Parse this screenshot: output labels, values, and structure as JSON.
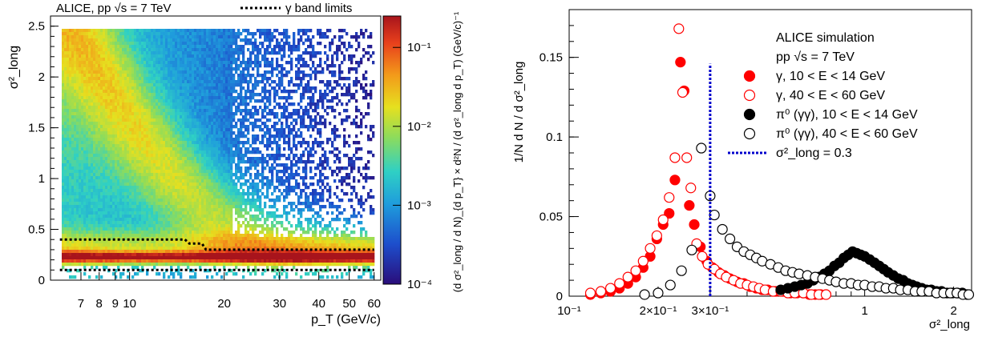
{
  "chart_data": [
    {
      "type": "heatmap",
      "title": "ALICE, pp √s = 7 TeV",
      "legend": {
        "position": "top-right",
        "items": [
          {
            "label": "γ band limits",
            "style": "dotted",
            "color": "#000000"
          }
        ]
      },
      "xlabel": "p_T (GeV/c)",
      "ylabel": "σ²_long",
      "x_scale": "log",
      "xlim": [
        5.6,
        63
      ],
      "ylim": [
        0,
        2.6
      ],
      "x_ticks": [
        {
          "v": 7,
          "t": "7"
        },
        {
          "v": 8,
          "t": "8"
        },
        {
          "v": 9,
          "t": "9"
        },
        {
          "v": 10,
          "t": "10"
        },
        {
          "v": 20,
          "t": "20"
        },
        {
          "v": 30,
          "t": "30"
        },
        {
          "v": 40,
          "t": "40"
        },
        {
          "v": 50,
          "t": "50"
        },
        {
          "v": 60,
          "t": "60"
        }
      ],
      "y_ticks": [
        {
          "v": 0,
          "t": "0"
        },
        {
          "v": 0.5,
          "t": "0.5"
        },
        {
          "v": 1,
          "t": "1"
        },
        {
          "v": 1.5,
          "t": "1.5"
        },
        {
          "v": 2,
          "t": "2"
        },
        {
          "v": 2.5,
          "t": "2.5"
        }
      ],
      "colorbar": {
        "scale": "log",
        "range": [
          0.0001,
          0.25
        ],
        "ticks": [
          {
            "v": 0.1,
            "t": "10⁻¹"
          },
          {
            "v": 0.01,
            "t": "10⁻²"
          },
          {
            "v": 0.001,
            "t": "10⁻³"
          },
          {
            "v": 0.0001,
            "t": "10⁻⁴"
          }
        ],
        "label": "(d σ²_long / d N)_{d p_T} × d²N / (d σ²_long d p_T) (GeV/c)⁻¹"
      },
      "band_limits": {
        "upper": [
          [
            6.0,
            0.4
          ],
          [
            15.0,
            0.4
          ],
          [
            15.5,
            0.36
          ],
          [
            17.0,
            0.36
          ],
          [
            17.5,
            0.3
          ],
          [
            60.0,
            0.3
          ]
        ],
        "lower": [
          [
            6.0,
            0.1
          ],
          [
            60.0,
            0.1
          ]
        ]
      }
    },
    {
      "type": "scatter",
      "x_scale": "log",
      "xlabel": "σ²_long",
      "ylabel": "1/N  d N / d σ²_long",
      "xlim": [
        0.1,
        2.3
      ],
      "ylim": [
        0,
        0.18
      ],
      "x_ticks": [
        {
          "v": 0.1,
          "t": "10⁻¹"
        },
        {
          "v": 0.2,
          "t": "2×10⁻¹"
        },
        {
          "v": 0.3,
          "t": "3×10⁻¹"
        },
        {
          "v": 1,
          "t": "1"
        },
        {
          "v": 2,
          "t": "2"
        }
      ],
      "y_ticks": [
        {
          "v": 0,
          "t": "0"
        },
        {
          "v": 0.05,
          "t": "0.05"
        },
        {
          "v": 0.1,
          "t": "0.1"
        },
        {
          "v": 0.15,
          "t": "0.15"
        }
      ],
      "legend_text": [
        "ALICE simulation",
        "pp √s = 7 TeV"
      ],
      "series": [
        {
          "name": "γ, 10 < E < 14 GeV",
          "marker": "filled-circle",
          "color": "#ff0000",
          "points": [
            [
              0.118,
              0.001
            ],
            [
              0.128,
              0.002
            ],
            [
              0.138,
              0.003
            ],
            [
              0.148,
              0.005
            ],
            [
              0.158,
              0.008
            ],
            [
              0.168,
              0.012
            ],
            [
              0.178,
              0.018
            ],
            [
              0.188,
              0.025
            ],
            [
              0.198,
              0.036
            ],
            [
              0.208,
              0.045
            ],
            [
              0.218,
              0.052
            ],
            [
              0.228,
              0.073
            ],
            [
              0.238,
              0.147
            ],
            [
              0.245,
              0.129
            ],
            [
              0.255,
              0.057
            ],
            [
              0.265,
              0.045
            ],
            [
              0.278,
              0.031
            ],
            [
              0.292,
              0.022
            ],
            [
              0.305,
              0.018
            ],
            [
              0.32,
              0.015
            ],
            [
              0.335,
              0.013
            ],
            [
              0.35,
              0.011
            ],
            [
              0.37,
              0.009
            ],
            [
              0.39,
              0.008
            ],
            [
              0.41,
              0.006
            ],
            [
              0.43,
              0.005
            ],
            [
              0.45,
              0.004
            ],
            [
              0.47,
              0.004
            ],
            [
              0.5,
              0.003
            ],
            [
              0.53,
              0.003
            ],
            [
              0.56,
              0.002
            ],
            [
              0.59,
              0.002
            ],
            [
              0.62,
              0.002
            ],
            [
              0.65,
              0.001
            ],
            [
              0.68,
              0.001
            ],
            [
              0.71,
              0.001
            ],
            [
              0.74,
              0.001
            ]
          ]
        },
        {
          "name": "γ, 40 < E < 60 GeV",
          "marker": "open-circle",
          "color": "#ff0000",
          "points": [
            [
              0.118,
              0.002
            ],
            [
              0.128,
              0.003
            ],
            [
              0.138,
              0.005
            ],
            [
              0.148,
              0.008
            ],
            [
              0.158,
              0.012
            ],
            [
              0.168,
              0.016
            ],
            [
              0.178,
              0.022
            ],
            [
              0.188,
              0.03
            ],
            [
              0.198,
              0.038
            ],
            [
              0.208,
              0.048
            ],
            [
              0.218,
              0.062
            ],
            [
              0.228,
              0.087
            ],
            [
              0.235,
              0.168
            ],
            [
              0.242,
              0.128
            ],
            [
              0.25,
              0.087
            ],
            [
              0.258,
              0.068
            ],
            [
              0.27,
              0.033
            ],
            [
              0.282,
              0.025
            ],
            [
              0.295,
              0.02
            ],
            [
              0.31,
              0.017
            ],
            [
              0.325,
              0.014
            ],
            [
              0.34,
              0.012
            ],
            [
              0.36,
              0.01
            ],
            [
              0.38,
              0.008
            ],
            [
              0.4,
              0.007
            ],
            [
              0.42,
              0.006
            ],
            [
              0.44,
              0.005
            ],
            [
              0.46,
              0.004
            ],
            [
              0.49,
              0.003
            ],
            [
              0.52,
              0.003
            ],
            [
              0.55,
              0.002
            ],
            [
              0.58,
              0.002
            ],
            [
              0.62,
              0.002
            ],
            [
              0.66,
              0.001
            ],
            [
              0.7,
              0.001
            ],
            [
              0.74,
              0.001
            ]
          ]
        },
        {
          "name": "π⁰ (γγ), 10 < E < 14 GeV",
          "marker": "filled-circle",
          "color": "#000000",
          "points": [
            [
              0.52,
              0.004
            ],
            [
              0.55,
              0.005
            ],
            [
              0.58,
              0.006
            ],
            [
              0.61,
              0.007
            ],
            [
              0.64,
              0.008
            ],
            [
              0.67,
              0.01
            ],
            [
              0.7,
              0.012
            ],
            [
              0.73,
              0.014
            ],
            [
              0.76,
              0.016
            ],
            [
              0.79,
              0.019
            ],
            [
              0.82,
              0.021
            ],
            [
              0.85,
              0.024
            ],
            [
              0.88,
              0.026
            ],
            [
              0.91,
              0.028
            ],
            [
              0.94,
              0.027
            ],
            [
              0.97,
              0.026
            ],
            [
              1.0,
              0.025
            ],
            [
              1.04,
              0.023
            ],
            [
              1.08,
              0.021
            ],
            [
              1.12,
              0.019
            ],
            [
              1.16,
              0.017
            ],
            [
              1.2,
              0.015
            ],
            [
              1.25,
              0.013
            ],
            [
              1.3,
              0.011
            ],
            [
              1.35,
              0.01
            ],
            [
              1.4,
              0.008
            ],
            [
              1.45,
              0.007
            ],
            [
              1.5,
              0.006
            ],
            [
              1.56,
              0.005
            ],
            [
              1.62,
              0.004
            ],
            [
              1.68,
              0.004
            ],
            [
              1.75,
              0.003
            ],
            [
              1.82,
              0.003
            ],
            [
              1.9,
              0.002
            ],
            [
              1.98,
              0.002
            ],
            [
              2.06,
              0.002
            ],
            [
              2.14,
              0.002
            ],
            [
              2.22,
              0.001
            ]
          ]
        },
        {
          "name": "π⁰ (γγ), 40 < E < 60 GeV",
          "marker": "open-circle",
          "color": "#000000",
          "points": [
            [
              0.18,
              0.001
            ],
            [
              0.2,
              0.002
            ],
            [
              0.22,
              0.007
            ],
            [
              0.24,
              0.016
            ],
            [
              0.26,
              0.029
            ],
            [
              0.28,
              0.093
            ],
            [
              0.3,
              0.063
            ],
            [
              0.31,
              0.051
            ],
            [
              0.33,
              0.042
            ],
            [
              0.35,
              0.036
            ],
            [
              0.37,
              0.031
            ],
            [
              0.39,
              0.028
            ],
            [
              0.41,
              0.026
            ],
            [
              0.43,
              0.024
            ],
            [
              0.45,
              0.022
            ],
            [
              0.48,
              0.02
            ],
            [
              0.51,
              0.018
            ],
            [
              0.54,
              0.016
            ],
            [
              0.57,
              0.015
            ],
            [
              0.6,
              0.014
            ],
            [
              0.64,
              0.013
            ],
            [
              0.68,
              0.012
            ],
            [
              0.72,
              0.011
            ],
            [
              0.76,
              0.01
            ],
            [
              0.8,
              0.009
            ],
            [
              0.85,
              0.008
            ],
            [
              0.9,
              0.008
            ],
            [
              0.95,
              0.007
            ],
            [
              1.0,
              0.007
            ],
            [
              1.06,
              0.006
            ],
            [
              1.12,
              0.006
            ],
            [
              1.18,
              0.005
            ],
            [
              1.25,
              0.005
            ],
            [
              1.32,
              0.004
            ],
            [
              1.4,
              0.004
            ],
            [
              1.48,
              0.003
            ],
            [
              1.56,
              0.003
            ],
            [
              1.65,
              0.003
            ],
            [
              1.75,
              0.002
            ],
            [
              1.85,
              0.002
            ],
            [
              1.95,
              0.002
            ],
            [
              2.05,
              0.002
            ],
            [
              2.15,
              0.001
            ],
            [
              2.25,
              0.001
            ]
          ]
        },
        {
          "name": "σ²_long = 0.3",
          "marker": "dashed-line",
          "color": "#0000cc",
          "points": [
            [
              0.3,
              0.0
            ],
            [
              0.3,
              0.146
            ]
          ]
        }
      ]
    }
  ]
}
